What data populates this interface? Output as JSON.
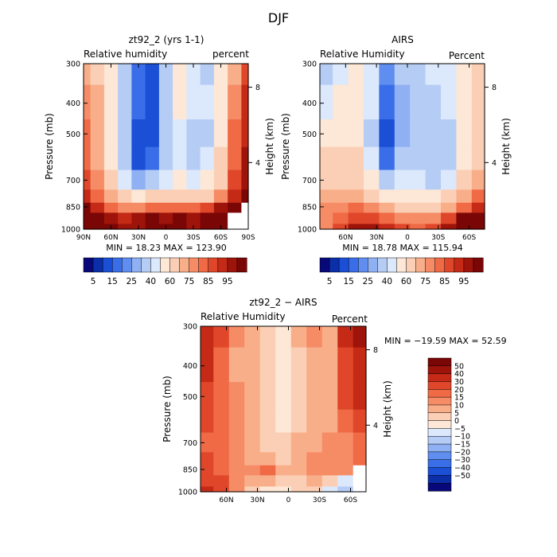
{
  "figure_title": "DJF",
  "colors": {
    "full_palette": [
      "#08087a",
      "#0a2fa8",
      "#1a4fd6",
      "#3a6ee8",
      "#5f8ef0",
      "#8fb0f2",
      "#b5cdf5",
      "#dce8fb",
      "#fde7d6",
      "#fbcfb5",
      "#f9ae8a",
      "#f58c66",
      "#ef6a45",
      "#e0472a",
      "#c42a16",
      "#9e140b",
      "#7a0606"
    ],
    "diff_palette": [
      "#08087a",
      "#0a2fa8",
      "#1a4fd6",
      "#3a6ee8",
      "#5f8ef0",
      "#8fb0f2",
      "#b5cdf5",
      "#dce8fb",
      "#fde7d6",
      "#fbcfb5",
      "#f9ae8a",
      "#f58c66",
      "#ef6a45",
      "#e0472a",
      "#c42a16",
      "#9e140b",
      "#7a0606"
    ]
  },
  "colorbar_full": {
    "labels": [
      "5",
      "15",
      "25",
      "40",
      "60",
      "75",
      "85",
      "95"
    ]
  },
  "colorbar_diff": {
    "labels": [
      "50",
      "40",
      "30",
      "20",
      "15",
      "10",
      "5",
      "0",
      "−5",
      "−10",
      "−15",
      "−20",
      "−30",
      "−40",
      "−50"
    ]
  },
  "chart_data": [
    {
      "type": "heatmap",
      "title": "zt92_2 (yrs 1-1)",
      "subtitle_left": "Relative humidity",
      "subtitle_right": "percent",
      "ylabel": "Pressure (mb)",
      "ylabel_right": "Height (km)",
      "yticks": [
        "300",
        "400",
        "500",
        "700",
        "850",
        "1000"
      ],
      "yticks_right": [
        "8",
        "4"
      ],
      "xticks": [
        "90N",
        "60N",
        "30N",
        "0",
        "30S",
        "60S",
        "90S"
      ],
      "x": [
        90,
        75,
        60,
        45,
        30,
        15,
        0,
        -15,
        -30,
        -45,
        -60,
        -75,
        -90
      ],
      "y": [
        300,
        400,
        500,
        600,
        700,
        800,
        850,
        925,
        1000
      ],
      "values": [
        [
          72,
          65,
          50,
          35,
          18,
          12,
          38,
          55,
          42,
          38,
          52,
          72,
          88
        ],
        [
          78,
          70,
          55,
          35,
          15,
          10,
          38,
          50,
          40,
          40,
          58,
          75,
          90
        ],
        [
          80,
          70,
          55,
          30,
          12,
          12,
          35,
          45,
          35,
          38,
          58,
          80,
          92
        ],
        [
          82,
          72,
          58,
          35,
          14,
          18,
          38,
          45,
          38,
          42,
          62,
          82,
          95
        ],
        [
          85,
          75,
          60,
          45,
          25,
          30,
          45,
          50,
          45,
          50,
          68,
          85,
          97
        ],
        [
          90,
          80,
          70,
          60,
          55,
          60,
          62,
          65,
          62,
          65,
          78,
          92,
          100
        ],
        [
          100,
          90,
          80,
          75,
          78,
          82,
          80,
          82,
          82,
          85,
          95,
          105,
          null
        ],
        [
          110,
          100,
          95,
          92,
          95,
          100,
          98,
          100,
          98,
          100,
          110,
          null,
          null
        ],
        [
          123,
          110,
          100,
          98,
          98,
          102,
          100,
          100,
          98,
          100,
          115,
          null,
          null
        ]
      ],
      "min_max_text": "MIN =   18.23   MAX =  123.90",
      "min": 18.23,
      "max": 123.9
    },
    {
      "type": "heatmap",
      "title": "AIRS",
      "subtitle_left": "Relative Humidity",
      "subtitle_right": "Percent",
      "ylabel": "Pressure (mb)",
      "ylabel_right": "Height (km)",
      "yticks": [
        "300",
        "400",
        "500",
        "700",
        "850",
        "1000"
      ],
      "yticks_right": [
        "8",
        "4"
      ],
      "xticks": [
        "60N",
        "30N",
        "0",
        "30S",
        "60S"
      ],
      "x": [
        80,
        65,
        50,
        35,
        20,
        5,
        -10,
        -25,
        -40,
        -55,
        -70
      ],
      "y": [
        300,
        400,
        500,
        600,
        700,
        800,
        850,
        925,
        1000
      ],
      "values": [
        [
          35,
          45,
          50,
          40,
          20,
          30,
          35,
          40,
          45,
          55,
          60
        ],
        [
          42,
          50,
          55,
          40,
          15,
          28,
          35,
          35,
          40,
          52,
          62
        ],
        [
          50,
          58,
          58,
          38,
          12,
          25,
          30,
          30,
          35,
          50,
          62
        ],
        [
          60,
          62,
          62,
          40,
          15,
          30,
          32,
          30,
          38,
          55,
          65
        ],
        [
          65,
          65,
          65,
          50,
          30,
          40,
          40,
          38,
          45,
          62,
          70
        ],
        [
          70,
          72,
          72,
          65,
          55,
          55,
          55,
          55,
          60,
          70,
          80
        ],
        [
          75,
          78,
          80,
          75,
          70,
          68,
          68,
          68,
          72,
          82,
          90
        ],
        [
          78,
          82,
          88,
          85,
          80,
          78,
          75,
          78,
          85,
          100,
          100
        ],
        [
          78,
          85,
          95,
          95,
          90,
          85,
          80,
          85,
          95,
          110,
          110
        ]
      ],
      "min_max_text": "MIN =   18.78   MAX =  115.94",
      "min": 18.78,
      "max": 115.94
    },
    {
      "type": "heatmap",
      "title": "zt92_2 − AIRS",
      "subtitle_left": "Relative Humidity",
      "subtitle_right": "Percent",
      "ylabel": "Pressure (mb)",
      "ylabel_right": "Height (km)",
      "yticks": [
        "300",
        "400",
        "500",
        "700",
        "850",
        "1000"
      ],
      "yticks_right": [
        "8",
        "4"
      ],
      "xticks": [
        "60N",
        "30N",
        "0",
        "30S",
        "60S"
      ],
      "x": [
        80,
        65,
        50,
        35,
        20,
        5,
        -10,
        -25,
        -40,
        -55,
        -70
      ],
      "y": [
        300,
        400,
        500,
        600,
        700,
        800,
        850,
        925,
        1000
      ],
      "values": [
        [
          35,
          20,
          10,
          5,
          3,
          -3,
          5,
          10,
          5,
          30,
          40
        ],
        [
          30,
          15,
          8,
          5,
          2,
          -5,
          3,
          8,
          5,
          25,
          35
        ],
        [
          25,
          15,
          10,
          5,
          2,
          -4,
          3,
          8,
          5,
          20,
          30
        ],
        [
          20,
          15,
          10,
          5,
          2,
          -3,
          3,
          8,
          8,
          15,
          25
        ],
        [
          18,
          15,
          10,
          6,
          3,
          0,
          5,
          8,
          10,
          12,
          18
        ],
        [
          20,
          15,
          10,
          8,
          8,
          3,
          5,
          10,
          10,
          12,
          15
        ],
        [
          25,
          18,
          12,
          10,
          15,
          8,
          8,
          12,
          12,
          10,
          null
        ],
        [
          28,
          20,
          12,
          8,
          5,
          3,
          3,
          5,
          0,
          -10,
          null
        ],
        [
          35,
          25,
          10,
          2,
          -5,
          -3,
          0,
          3,
          -8,
          -15,
          null
        ]
      ],
      "min_max_text": "MIN = −19.59   MAX =   52.59",
      "min": -19.59,
      "max": 52.59
    }
  ]
}
